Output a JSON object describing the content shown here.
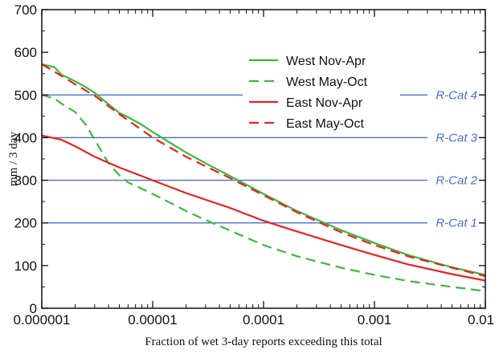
{
  "chart_data": {
    "type": "line",
    "xlabel": "Fraction of wet 3-day reports exceeding this total",
    "ylabel": "mm / 3 day",
    "xscale": "log",
    "xlim": [
      1e-06,
      0.01
    ],
    "ylim": [
      0,
      700
    ],
    "x_ticks": [
      1e-06,
      1e-05,
      0.0001,
      0.001,
      0.01
    ],
    "x_tick_labels": [
      "0.000001",
      "0.00001",
      "0.0001",
      "0.001",
      "0.01"
    ],
    "y_ticks": [
      0,
      100,
      200,
      300,
      400,
      500,
      600,
      700
    ],
    "y_tick_labels": [
      "0",
      "100",
      "200",
      "300",
      "400",
      "500",
      "600",
      "700"
    ],
    "legend_position": "top-right",
    "series": [
      {
        "name": "West Nov-Apr",
        "color": "#3cb93c",
        "dash": "solid",
        "points": [
          [
            1e-06,
            572
          ],
          [
            1.3e-06,
            565
          ],
          [
            1.5e-06,
            548
          ],
          [
            2e-06,
            532
          ],
          [
            2.5e-06,
            518
          ],
          [
            3e-06,
            505
          ],
          [
            4e-06,
            478
          ],
          [
            5e-06,
            458
          ],
          [
            6e-06,
            448
          ],
          [
            8e-06,
            430
          ],
          [
            1e-05,
            413
          ],
          [
            1.5e-05,
            385
          ],
          [
            2e-05,
            365
          ],
          [
            3e-05,
            340
          ],
          [
            5e-05,
            310
          ],
          [
            0.0001,
            268
          ],
          [
            0.0002,
            228
          ],
          [
            0.0005,
            183
          ],
          [
            0.001,
            153
          ],
          [
            0.002,
            125
          ],
          [
            0.005,
            96
          ],
          [
            0.01,
            78
          ]
        ]
      },
      {
        "name": "West May-Oct",
        "color": "#3cb93c",
        "dash": "dashed",
        "points": [
          [
            1e-06,
            500
          ],
          [
            1.3e-06,
            492
          ],
          [
            1.5e-06,
            480
          ],
          [
            2e-06,
            460
          ],
          [
            2.5e-06,
            430
          ],
          [
            3e-06,
            395
          ],
          [
            4e-06,
            340
          ],
          [
            5e-06,
            312
          ],
          [
            6e-06,
            295
          ],
          [
            8e-06,
            280
          ],
          [
            1e-05,
            268
          ],
          [
            1.5e-05,
            245
          ],
          [
            2e-05,
            228
          ],
          [
            3e-05,
            207
          ],
          [
            5e-05,
            182
          ],
          [
            0.0001,
            148
          ],
          [
            0.0002,
            122
          ],
          [
            0.0005,
            95
          ],
          [
            0.001,
            78
          ],
          [
            0.002,
            64
          ],
          [
            0.005,
            50
          ],
          [
            0.01,
            40
          ]
        ]
      },
      {
        "name": "East Nov-Apr",
        "color": "#e8231f",
        "dash": "solid",
        "points": [
          [
            1e-06,
            405
          ],
          [
            1.5e-06,
            395
          ],
          [
            2e-06,
            380
          ],
          [
            3e-06,
            355
          ],
          [
            5e-06,
            330
          ],
          [
            1e-05,
            300
          ],
          [
            2e-05,
            270
          ],
          [
            5e-05,
            235
          ],
          [
            0.0001,
            205
          ],
          [
            0.0002,
            180
          ],
          [
            0.0005,
            148
          ],
          [
            0.001,
            125
          ],
          [
            0.002,
            103
          ],
          [
            0.005,
            80
          ],
          [
            0.01,
            65
          ]
        ]
      },
      {
        "name": "East May-Oct",
        "color": "#e8231f",
        "dash": "dashed",
        "points": [
          [
            1e-06,
            572
          ],
          [
            1.5e-06,
            545
          ],
          [
            2e-06,
            525
          ],
          [
            3e-06,
            498
          ],
          [
            5e-06,
            455
          ],
          [
            1e-05,
            400
          ],
          [
            2e-05,
            355
          ],
          [
            5e-05,
            305
          ],
          [
            0.0001,
            265
          ],
          [
            0.0002,
            225
          ],
          [
            0.0005,
            178
          ],
          [
            0.001,
            148
          ],
          [
            0.002,
            122
          ],
          [
            0.005,
            95
          ],
          [
            0.01,
            75
          ]
        ]
      }
    ],
    "reference_lines": [
      {
        "y": 500,
        "label": "R-Cat 4",
        "color": "#4d6ecf"
      },
      {
        "y": 400,
        "label": "R-Cat 3",
        "color": "#4d6ecf"
      },
      {
        "y": 300,
        "label": "R-Cat 2",
        "color": "#4d6ecf"
      },
      {
        "y": 200,
        "label": "R-Cat 1",
        "color": "#4d6ecf"
      }
    ]
  }
}
